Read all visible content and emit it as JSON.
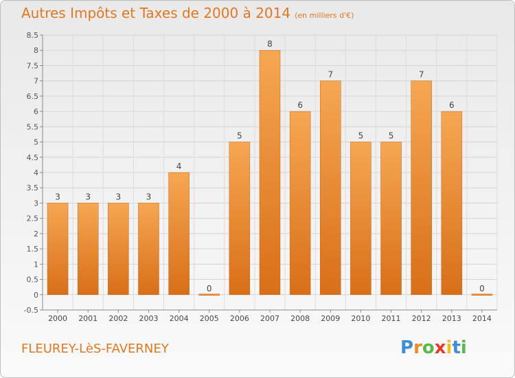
{
  "title": "Autres Impôts et Taxes de 2000 à 2014",
  "unit_note": "(en milliers d'€)",
  "commune": "FLEUREY-LèS-FAVERNEY",
  "logo": {
    "letters": [
      "P",
      "r",
      "o",
      "x",
      "i",
      "t",
      "i"
    ],
    "colors": [
      "#3a8fd8",
      "#f08a24",
      "#58b848",
      "#e8392a",
      "#f2b81c",
      "#3a8fd8",
      "#58b848"
    ]
  },
  "colors": {
    "accent": "#e07820",
    "bar_top": "#f6a752",
    "bar_bottom": "#d86f18"
  },
  "chart_data": {
    "type": "bar",
    "title": "Autres Impôts et Taxes de 2000 à 2014",
    "subtitle": "(en milliers d'€)",
    "xlabel": "",
    "ylabel": "",
    "categories": [
      "2000",
      "2001",
      "2002",
      "2003",
      "2004",
      "2005",
      "2006",
      "2007",
      "2008",
      "2009",
      "2010",
      "2011",
      "2012",
      "2013",
      "2014"
    ],
    "values": [
      3,
      3,
      3,
      3,
      4,
      0,
      5,
      8,
      6,
      7,
      5,
      5,
      7,
      6,
      0
    ],
    "data_labels": [
      "3",
      "3",
      "3",
      "3",
      "4",
      "0",
      "5",
      "8",
      "6",
      "7",
      "5",
      "5",
      "7",
      "6",
      "0"
    ],
    "yticks": [
      "-0.5",
      "0",
      "0.5",
      "1",
      "1.5",
      "2",
      "2.5",
      "3",
      "3.5",
      "4",
      "4.5",
      "5",
      "5.5",
      "6",
      "6.5",
      "7",
      "7.5",
      "8",
      "8.5"
    ],
    "ylim": [
      -0.5,
      8.5
    ],
    "grid": true
  }
}
